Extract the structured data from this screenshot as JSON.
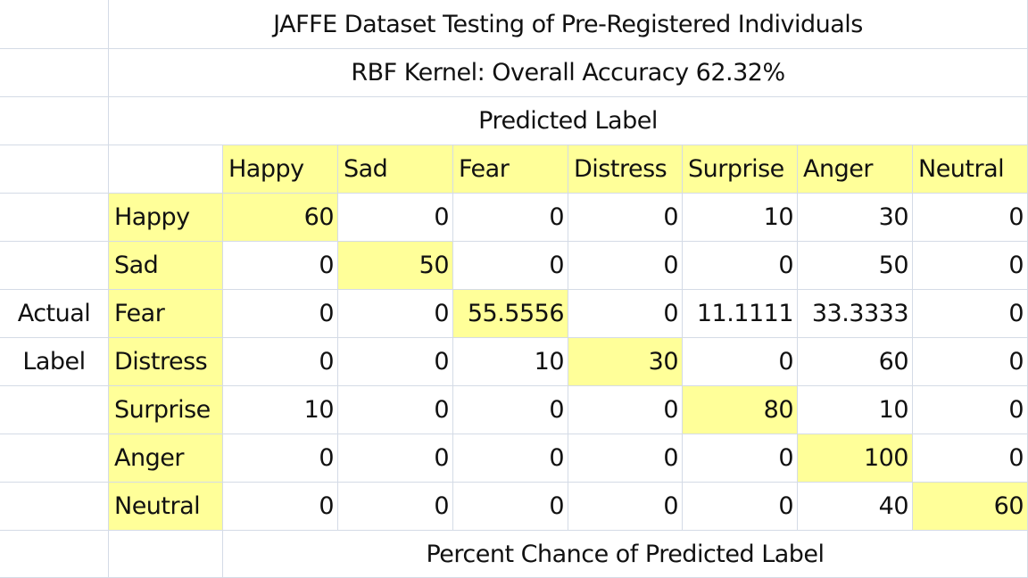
{
  "colors": {
    "highlight": "#ffff99",
    "grid": "#d4dbe6",
    "background": "#ffffff"
  },
  "chart_data": {
    "type": "table",
    "title": "JAFFE Dataset Testing of Pre-Registered Individuals",
    "subtitle": "RBF Kernel: Overall Accuracy 62.32%",
    "column_axis_label": "Predicted Label",
    "row_axis_label_line1": "Actual",
    "row_axis_label_line2": "Label",
    "footer": "Percent Chance of Predicted Label",
    "columns": [
      "Happy",
      "Sad",
      "Fear",
      "Distress",
      "Surprise",
      "Anger",
      "Neutral"
    ],
    "rows": [
      {
        "label": "Happy",
        "values": [
          "60",
          "0",
          "0",
          "0",
          "10",
          "30",
          "0"
        ]
      },
      {
        "label": "Sad",
        "values": [
          "0",
          "50",
          "0",
          "0",
          "0",
          "50",
          "0"
        ]
      },
      {
        "label": "Fear",
        "values": [
          "0",
          "0",
          "55.5556",
          "0",
          "11.1111",
          "33.3333",
          "0"
        ]
      },
      {
        "label": "Distress",
        "values": [
          "0",
          "0",
          "10",
          "30",
          "0",
          "60",
          "0"
        ]
      },
      {
        "label": "Surprise",
        "values": [
          "10",
          "0",
          "0",
          "0",
          "80",
          "10",
          "0"
        ]
      },
      {
        "label": "Anger",
        "values": [
          "0",
          "0",
          "0",
          "0",
          "0",
          "100",
          "0"
        ]
      },
      {
        "label": "Neutral",
        "values": [
          "0",
          "0",
          "0",
          "0",
          "0",
          "40",
          "60"
        ]
      }
    ]
  }
}
